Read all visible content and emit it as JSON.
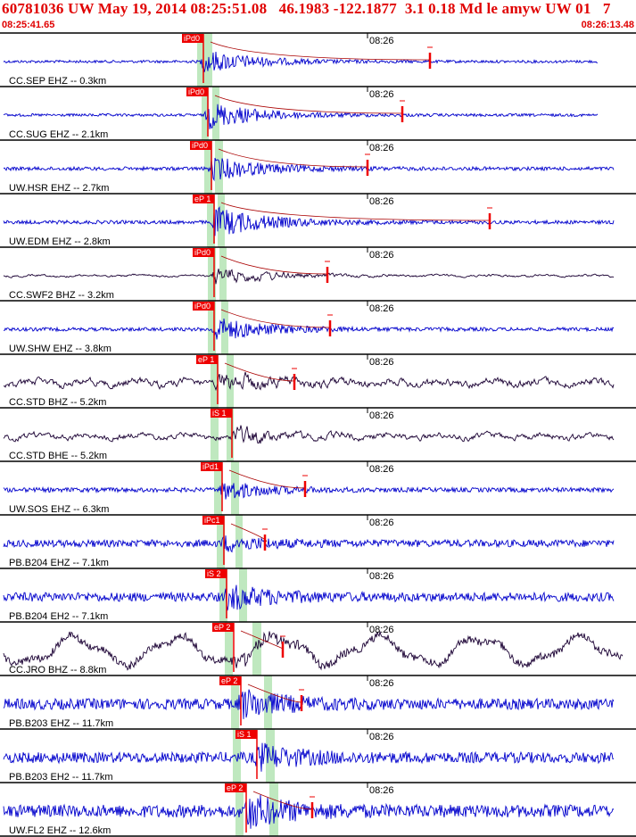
{
  "header": {
    "title": "60781036 UW May 19, 2014 08:25:51.08   46.1983 -122.1877  3.1 0.18 Md le amyw UW 01   7",
    "start_time": "08:25:41.65",
    "end_time": "08:26:13.48",
    "minute_label": "08:26"
  },
  "colors": {
    "header_text": "#e00000",
    "ehz_trace": "#0000cc",
    "bh_trace": "#1a0033",
    "pick_fill": "#ee0000",
    "pick_text": "#ffffff",
    "band": "#bfe8bf",
    "coda": "#aa0000",
    "label": "#000000"
  },
  "traces": [
    {
      "label": "CC.SEP EHZ -- 0.3km",
      "pick": "iPd0",
      "kind": "ehz"
    },
    {
      "label": "CC.SUG EHZ -- 2.1km",
      "pick": "iPd0",
      "kind": "ehz"
    },
    {
      "label": "UW.HSR EHZ -- 2.7km",
      "pick": "iPd0",
      "kind": "ehz"
    },
    {
      "label": "UW.EDM EHZ -- 2.8km",
      "pick": "eP 1",
      "kind": "ehz"
    },
    {
      "label": "CC.SWF2 BHZ -- 3.2km",
      "pick": "iPd0",
      "kind": "bh"
    },
    {
      "label": "UW.SHW EHZ -- 3.8km",
      "pick": "iPd0",
      "kind": "ehz"
    },
    {
      "label": "CC.STD BHZ -- 5.2km",
      "pick": "eP 1",
      "kind": "bh"
    },
    {
      "label": "CC.STD BHE -- 5.2km",
      "pick": "iS 1",
      "kind": "bh"
    },
    {
      "label": "UW.SOS EHZ -- 6.3km",
      "pick": "iPd1",
      "kind": "ehz"
    },
    {
      "label": "PB.B204 EHZ -- 7.1km",
      "pick": "iPc1",
      "kind": "ehz"
    },
    {
      "label": "PB.B204 EH2 -- 7.1km",
      "pick": "iS 2",
      "kind": "ehz"
    },
    {
      "label": "CC.JRO BHZ -- 8.8km",
      "pick": "eP 2",
      "kind": "bh"
    },
    {
      "label": "PB.B203 EHZ -- 11.7km",
      "pick": "eP 2",
      "kind": "ehz"
    },
    {
      "label": "PB.B203 EH2 -- 11.7km",
      "pick": "iS 1",
      "kind": "ehz"
    },
    {
      "label": "UW.FL2 EHZ -- 12.6km",
      "pick": "eP 2",
      "kind": "ehz"
    }
  ]
}
